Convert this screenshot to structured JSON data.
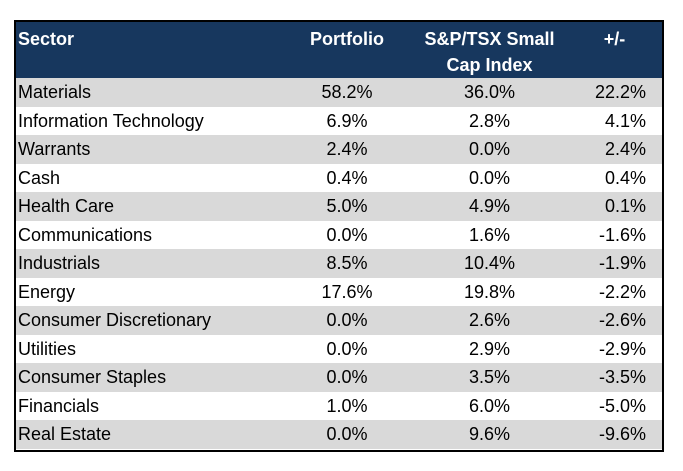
{
  "table": {
    "headers": {
      "sector": "Sector",
      "portfolio": "Portfolio",
      "index_line1": "S&P/TSX Small",
      "index_line2": "Cap Index",
      "diff": "+/-"
    },
    "rows": [
      {
        "sector": "Materials",
        "portfolio": "58.2%",
        "index": "36.0%",
        "diff": "22.2%"
      },
      {
        "sector": "Information Technology",
        "portfolio": "6.9%",
        "index": "2.8%",
        "diff": "4.1%"
      },
      {
        "sector": "Warrants",
        "portfolio": "2.4%",
        "index": "0.0%",
        "diff": "2.4%"
      },
      {
        "sector": "Cash",
        "portfolio": "0.4%",
        "index": "0.0%",
        "diff": "0.4%"
      },
      {
        "sector": "Health Care",
        "portfolio": "5.0%",
        "index": "4.9%",
        "diff": "0.1%"
      },
      {
        "sector": "Communications",
        "portfolio": "0.0%",
        "index": "1.6%",
        "diff": "-1.6%"
      },
      {
        "sector": "Industrials",
        "portfolio": "8.5%",
        "index": "10.4%",
        "diff": "-1.9%"
      },
      {
        "sector": "Energy",
        "portfolio": "17.6%",
        "index": "19.8%",
        "diff": "-2.2%"
      },
      {
        "sector": "Consumer Discretionary",
        "portfolio": "0.0%",
        "index": "2.6%",
        "diff": "-2.6%"
      },
      {
        "sector": "Utilities",
        "portfolio": "0.0%",
        "index": "2.9%",
        "diff": "-2.9%"
      },
      {
        "sector": "Consumer Staples",
        "portfolio": "0.0%",
        "index": "3.5%",
        "diff": "-3.5%"
      },
      {
        "sector": "Financials",
        "portfolio": "1.0%",
        "index": "6.0%",
        "diff": "-5.0%"
      },
      {
        "sector": "Real Estate",
        "portfolio": "0.0%",
        "index": "9.6%",
        "diff": "-9.6%"
      }
    ]
  },
  "colors": {
    "header_bg": "#17375e",
    "header_text": "#ffffff",
    "shaded_row": "#d9d9d9",
    "plain_row": "#ffffff"
  }
}
